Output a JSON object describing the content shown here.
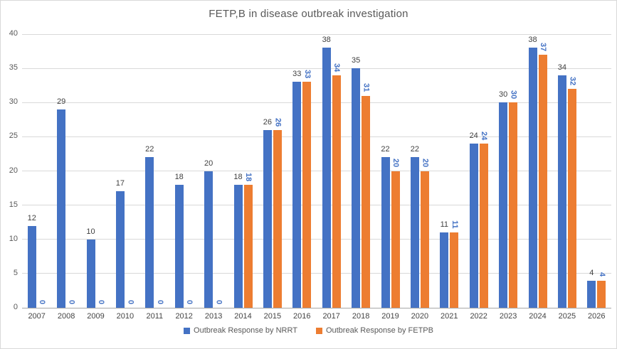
{
  "chart_data": {
    "type": "bar",
    "title": "FETP,B in disease outbreak investigation",
    "categories": [
      "2007",
      "2008",
      "2009",
      "2010",
      "2011",
      "2012",
      "2013",
      "2014",
      "2015",
      "2016",
      "2017",
      "2018",
      "2019",
      "2020",
      "2021",
      "2022",
      "2023",
      "2024",
      "2025",
      "2026"
    ],
    "series": [
      {
        "name": "Outbreak Response by NRRT",
        "color": "#4472C4",
        "label_color": "#404040",
        "label_orientation": "horizontal",
        "values": [
          12,
          29,
          10,
          17,
          22,
          18,
          20,
          18,
          26,
          33,
          38,
          35,
          22,
          22,
          11,
          24,
          30,
          38,
          34,
          4
        ]
      },
      {
        "name": "Outbreak Response by FETPB",
        "color": "#ED7D31",
        "label_color": "#4472C4",
        "label_orientation": "vertical",
        "values": [
          0,
          0,
          0,
          0,
          0,
          0,
          0,
          18,
          26,
          33,
          34,
          31,
          20,
          20,
          11,
          24,
          30,
          37,
          32,
          4
        ]
      }
    ],
    "y_axis": {
      "min": 0,
      "max": 40,
      "step": 5,
      "tick_labels": [
        "0",
        "5",
        "10",
        "15",
        "20",
        "25",
        "30",
        "35",
        "40"
      ]
    },
    "grid": true,
    "legend_position": "bottom",
    "colors": {
      "background": "#FFFFFF",
      "border": "#D9D9D9",
      "gridline": "#D9D9D9",
      "axis_line": "#A6A6A6",
      "axis_text": "#595959",
      "title_text": "#595959"
    }
  }
}
